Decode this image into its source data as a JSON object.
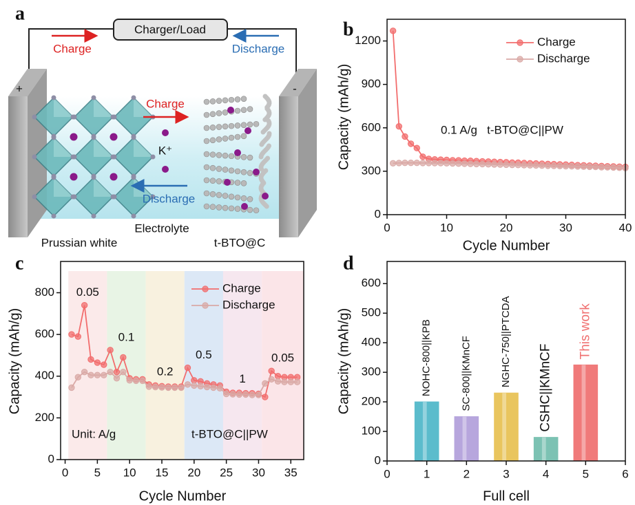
{
  "diagram": {
    "label": "a",
    "load": "Charger/Load",
    "charge_outer": "Charge",
    "discharge_outer": "Discharge",
    "positive": "+",
    "negative": "-",
    "charge_inner": "Charge",
    "ion": "K⁺",
    "discharge_inner": "Discharge",
    "electrolyte": "Electrolyte",
    "cathode": "Prussian white",
    "anode": "t-BTO@C"
  },
  "chart_data": [
    {
      "label": "b",
      "type": "line",
      "xlabel": "Cycle Number",
      "ylabel": "Capacity (mAh/g)",
      "annotations": [
        "0.1 A/g   t-BTO@C||PW"
      ],
      "x": [
        1,
        2,
        3,
        4,
        5,
        6,
        7,
        8,
        9,
        10,
        11,
        12,
        13,
        14,
        15,
        16,
        17,
        18,
        19,
        20,
        21,
        22,
        23,
        24,
        25,
        26,
        27,
        28,
        29,
        30,
        31,
        32,
        33,
        34,
        35,
        36,
        37,
        38,
        39,
        40
      ],
      "series": [
        {
          "name": "Charge",
          "color": "#f26d6d",
          "values": [
            1270,
            610,
            540,
            490,
            460,
            400,
            385,
            382,
            380,
            378,
            376,
            375,
            373,
            372,
            370,
            368,
            367,
            365,
            363,
            362,
            360,
            359,
            357,
            355,
            354,
            352,
            350,
            349,
            347,
            346,
            344,
            342,
            341,
            339,
            338,
            336,
            334,
            333,
            331,
            330
          ]
        },
        {
          "name": "Discharge",
          "color": "#d9a9a6",
          "values": [
            355,
            357,
            358,
            358,
            358,
            357,
            357,
            356,
            356,
            355,
            354,
            353,
            352,
            351,
            350,
            349,
            348,
            347,
            346,
            345,
            344,
            343,
            342,
            341,
            340,
            339,
            338,
            337,
            336,
            335,
            334,
            333,
            332,
            331,
            330,
            328,
            327,
            326,
            324,
            322
          ]
        }
      ],
      "xlim": [
        0,
        40
      ],
      "xticks": [
        0,
        10,
        20,
        30,
        40
      ],
      "ylim": [
        0,
        1350
      ],
      "yticks": [
        0,
        300,
        600,
        900,
        1200
      ],
      "legend": "upper right"
    },
    {
      "label": "c",
      "type": "line",
      "xlabel": "Cycle Number",
      "ylabel": "Capacity (mAh/g)",
      "annotations": [
        "Unit: A/g",
        "t-BTO@C||PW"
      ],
      "x": [
        1,
        2,
        3,
        4,
        5,
        6,
        7,
        8,
        9,
        10,
        11,
        12,
        13,
        14,
        15,
        16,
        17,
        18,
        19,
        20,
        21,
        22,
        23,
        24,
        25,
        26,
        27,
        28,
        29,
        30,
        31,
        32,
        33,
        34,
        35,
        36
      ],
      "series": [
        {
          "name": "Charge",
          "color": "#f26d6d",
          "values": [
            600,
            590,
            740,
            480,
            465,
            455,
            525,
            420,
            490,
            390,
            385,
            385,
            360,
            355,
            352,
            350,
            350,
            350,
            440,
            380,
            375,
            365,
            360,
            355,
            325,
            320,
            320,
            318,
            318,
            315,
            300,
            425,
            400,
            395,
            395,
            395
          ]
        },
        {
          "name": "Discharge",
          "color": "#d9a9a6",
          "values": [
            345,
            395,
            420,
            405,
            405,
            405,
            420,
            390,
            420,
            380,
            378,
            378,
            350,
            348,
            346,
            345,
            345,
            345,
            360,
            355,
            352,
            348,
            345,
            342,
            315,
            313,
            312,
            312,
            310,
            310,
            365,
            385,
            375,
            372,
            372,
            372
          ]
        }
      ],
      "bands": [
        {
          "label": "0.05",
          "from": 0.5,
          "to": 6.5,
          "color": "#fbeaea"
        },
        {
          "label": "0.1",
          "from": 6.5,
          "to": 12.5,
          "color": "#e8f4e5"
        },
        {
          "label": "0.2",
          "from": 12.5,
          "to": 18.5,
          "color": "#f8f1df"
        },
        {
          "label": "0.5",
          "from": 18.5,
          "to": 24.5,
          "color": "#dce8f6"
        },
        {
          "label": "1",
          "from": 24.5,
          "to": 30.5,
          "color": "#f6e7ef"
        },
        {
          "label": "0.05",
          "from": 30.5,
          "to": 37,
          "color": "#fbe5e8"
        }
      ],
      "xlim": [
        -0.7,
        37
      ],
      "xticks": [
        0,
        5,
        10,
        15,
        20,
        25,
        30,
        35
      ],
      "ylim": [
        0,
        950
      ],
      "yticks": [
        0,
        200,
        400,
        600,
        800
      ],
      "legend": "upper center"
    },
    {
      "label": "d",
      "type": "bar",
      "xlabel": "Full cell",
      "ylabel": "Capacity (mAh/g)",
      "x": [
        1,
        2,
        3,
        4,
        5
      ],
      "values": [
        200,
        150,
        230,
        80,
        325
      ],
      "colors": [
        "#5bbccc",
        "#b7a6dd",
        "#e9c55e",
        "#7cc2b3",
        "#f07a7a"
      ],
      "bar_labels": [
        "NOHC-800||KPB",
        "SC-800||KMnCF",
        "NGHC-750||PTCDA",
        "CSHC||KMnCF",
        "This work"
      ],
      "bar_label_colors": [
        "#111111",
        "#111111",
        "#111111",
        "#111111",
        "#f07070"
      ],
      "xlim": [
        0,
        6
      ],
      "xticks": [
        0,
        1,
        2,
        3,
        4,
        5,
        6
      ],
      "ylim": [
        0,
        675
      ],
      "yticks": [
        0,
        100,
        200,
        300,
        400,
        500,
        600
      ]
    }
  ]
}
